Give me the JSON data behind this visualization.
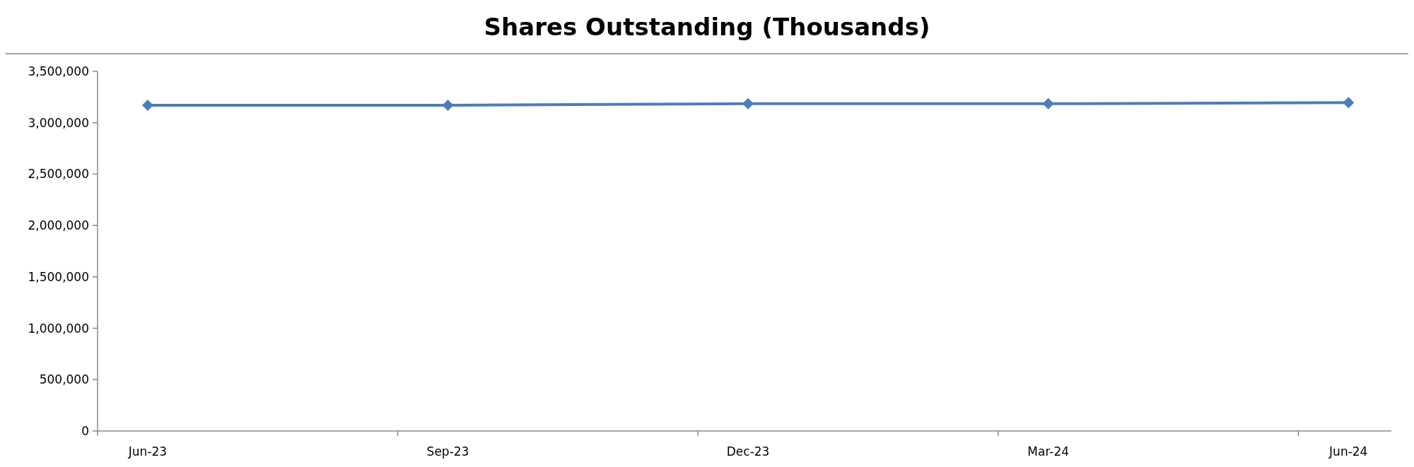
{
  "chart_data": {
    "type": "line",
    "title": "Shares Outstanding (Thousands)",
    "categories": [
      "Jun-23",
      "Sep-23",
      "Dec-23",
      "Mar-24",
      "Jun-24"
    ],
    "series": [
      {
        "color": "#4a7ebb",
        "values": [
          3170000,
          3170000,
          3185000,
          3185000,
          3195000
        ]
      }
    ],
    "ylim": [
      0,
      3500000
    ],
    "yticks": [
      {
        "value": 0,
        "label": "0"
      },
      {
        "value": 500000,
        "label": "500,000"
      },
      {
        "value": 1000000,
        "label": "1,000,000"
      },
      {
        "value": 1500000,
        "label": "1,500,000"
      },
      {
        "value": 2000000,
        "label": "2,000,000"
      },
      {
        "value": 2500000,
        "label": "2,500,000"
      },
      {
        "value": 3000000,
        "label": "3,000,000"
      },
      {
        "value": 3500000,
        "label": "3,500,000"
      }
    ],
    "grid": false,
    "marker": "diamond",
    "line_style": "solid"
  }
}
